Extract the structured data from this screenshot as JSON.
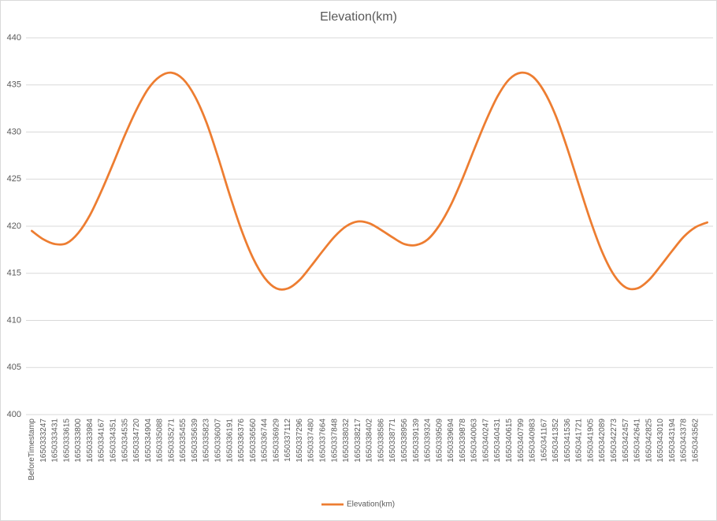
{
  "chart_data": {
    "type": "line",
    "title": "Elevation(km)",
    "categories": [
      "BeforeTimestamp",
      "1650333247",
      "1650333431",
      "1650333615",
      "1650333800",
      "1650333984",
      "1650334167",
      "1650334351",
      "1650334535",
      "1650334720",
      "1650334904",
      "1650335088",
      "1650335271",
      "1650335455",
      "1650335639",
      "1650335823",
      "1650336007",
      "1650336191",
      "1650336376",
      "1650336560",
      "1650336744",
      "1650336929",
      "1650337112",
      "1650337296",
      "1650337480",
      "1650337664",
      "1650337848",
      "1650338032",
      "1650338217",
      "1650338402",
      "1650338586",
      "1650338771",
      "1650338956",
      "1650339139",
      "1650339324",
      "1650339509",
      "1650339694",
      "1650339878",
      "1650340063",
      "1650340247",
      "1650340431",
      "1650340615",
      "1650340799",
      "1650340983",
      "1650341167",
      "1650341352",
      "1650341536",
      "1650341721",
      "1650341905",
      "1650342089",
      "1650342273",
      "1650342457",
      "1650342641",
      "1650342825",
      "1650343010",
      "1650343194",
      "1650343378",
      "1650343562",
      null
    ],
    "series": [
      {
        "name": "Elevation(km)",
        "color": "#ed7d31",
        "values": [
          419.5,
          418.6,
          418.1,
          418.2,
          419.3,
          421.2,
          423.8,
          426.7,
          429.7,
          432.4,
          434.6,
          435.9,
          436.3,
          435.6,
          433.8,
          431.0,
          427.3,
          423.3,
          419.6,
          416.6,
          414.5,
          413.4,
          413.4,
          414.3,
          415.8,
          417.4,
          418.9,
          420.0,
          420.5,
          420.3,
          419.6,
          418.8,
          418.1,
          418.0,
          418.6,
          420.1,
          422.3,
          425.1,
          428.2,
          431.2,
          433.8,
          435.6,
          436.3,
          435.9,
          434.3,
          431.7,
          428.2,
          424.3,
          420.5,
          417.2,
          414.8,
          413.5,
          413.4,
          414.3,
          415.8,
          417.4,
          418.9,
          419.9,
          420.4
        ]
      }
    ],
    "ylim": [
      400,
      440
    ],
    "yticks": [
      400,
      405,
      410,
      415,
      420,
      425,
      430,
      435,
      440
    ],
    "grid": true,
    "legend": "bottom"
  }
}
